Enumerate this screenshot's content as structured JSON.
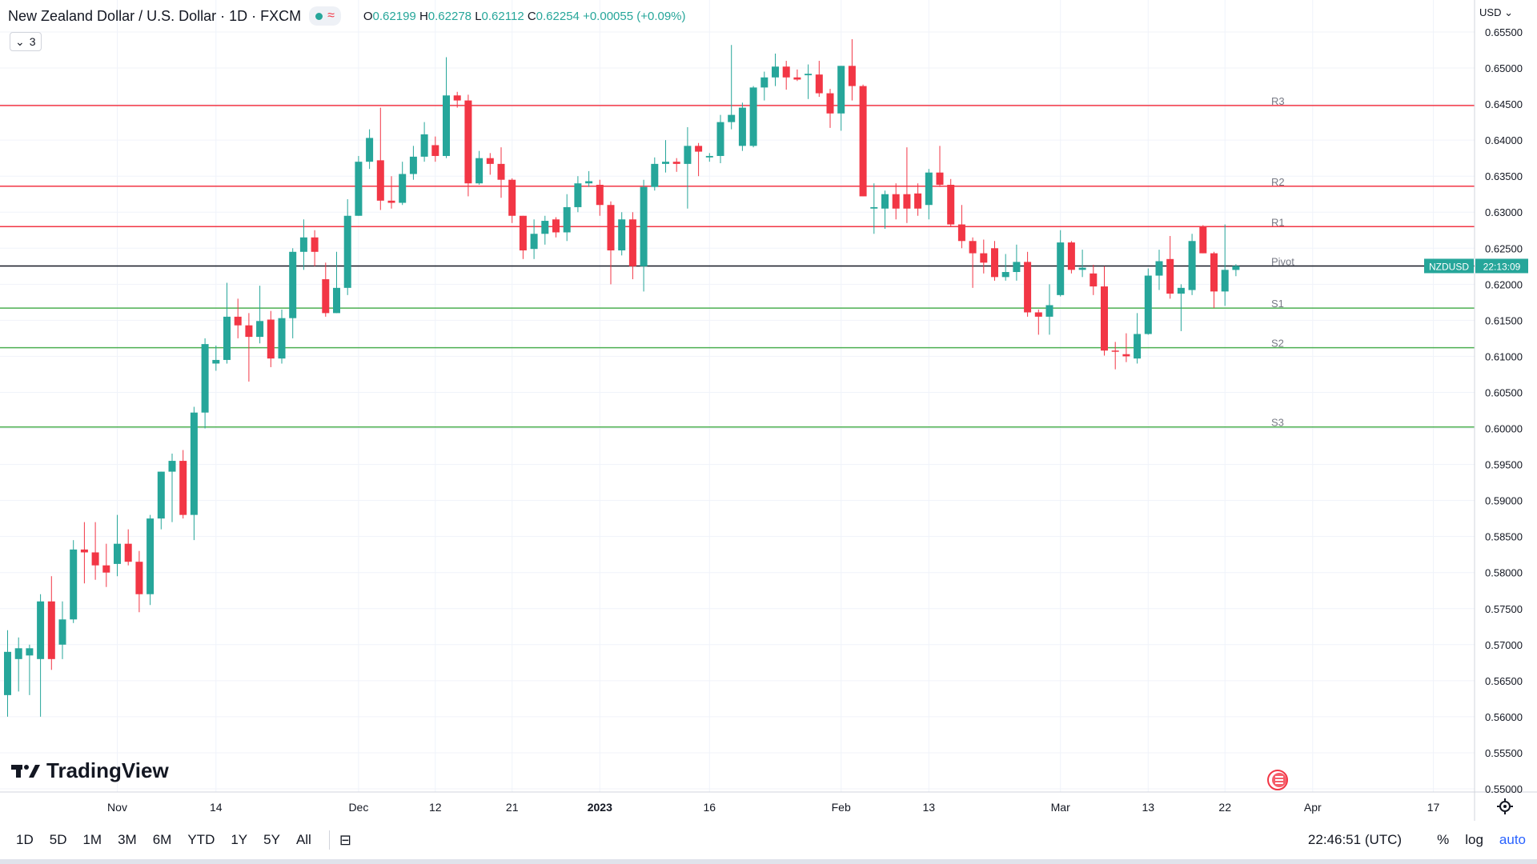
{
  "header": {
    "title": "New Zealand Dollar / U.S. Dollar · 1D · FXCM",
    "ohlc": {
      "o_label": "O",
      "o": "0.62199",
      "h_label": "H",
      "h": "0.62278",
      "l_label": "L",
      "l": "0.62112",
      "c_label": "C",
      "c": "0.62254",
      "change": "+0.00055 (+0.09%)"
    },
    "indicators_count": "3",
    "currency": "USD"
  },
  "logo": {
    "text": "TradingView"
  },
  "colors": {
    "up": "#26a69a",
    "down": "#f23645",
    "resistance": "#f23645",
    "support": "#4caf50",
    "pivot": "#131722",
    "accent": "#2962ff"
  },
  "toolbar": {
    "ranges": [
      "1D",
      "5D",
      "1M",
      "3M",
      "6M",
      "YTD",
      "1Y",
      "5Y",
      "All"
    ],
    "clock": "22:46:51 (UTC)",
    "percent": "%",
    "log": "log",
    "auto": "auto"
  },
  "chart_data": {
    "type": "candlestick",
    "symbol": "NZDUSD",
    "countdown": "22:13:09",
    "last_price": 0.62254,
    "ylim": [
      0.55,
      0.6555
    ],
    "y_ticks": [
      "0.65500",
      "0.65000",
      "0.64500",
      "0.64000",
      "0.63500",
      "0.63000",
      "0.62500",
      "0.62000",
      "0.61500",
      "0.61000",
      "0.60500",
      "0.60000",
      "0.59500",
      "0.59000",
      "0.58500",
      "0.58000",
      "0.57500",
      "0.57000",
      "0.56500",
      "0.56000",
      "0.55500",
      "0.55000"
    ],
    "x_ticks": [
      {
        "label": "Nov",
        "i": 10
      },
      {
        "label": "14",
        "i": 19
      },
      {
        "label": "Dec",
        "i": 32
      },
      {
        "label": "12",
        "i": 39
      },
      {
        "label": "21",
        "i": 46
      },
      {
        "label": "2023",
        "i": 54,
        "bold": true
      },
      {
        "label": "16",
        "i": 64
      },
      {
        "label": "Feb",
        "i": 76
      },
      {
        "label": "13",
        "i": 84
      },
      {
        "label": "Mar",
        "i": 96
      },
      {
        "label": "13",
        "i": 104
      },
      {
        "label": "22",
        "i": 111
      },
      {
        "label": "Apr",
        "i": 119
      },
      {
        "label": "17",
        "i": 130
      }
    ],
    "levels": [
      {
        "name": "R3",
        "value": 0.6448,
        "kind": "resistance"
      },
      {
        "name": "R2",
        "value": 0.6336,
        "kind": "resistance"
      },
      {
        "name": "R1",
        "value": 0.628,
        "kind": "resistance"
      },
      {
        "name": "Pivot",
        "value": 0.62254,
        "kind": "pivot"
      },
      {
        "name": "S1",
        "value": 0.6167,
        "kind": "support"
      },
      {
        "name": "S2",
        "value": 0.6112,
        "kind": "support"
      },
      {
        "name": "S3",
        "value": 0.6002,
        "kind": "support"
      }
    ],
    "candles": [
      {
        "i": 0,
        "o": 0.563,
        "h": 0.572,
        "l": 0.56,
        "c": 0.569
      },
      {
        "i": 1,
        "o": 0.568,
        "h": 0.571,
        "l": 0.5635,
        "c": 0.5695
      },
      {
        "i": 2,
        "o": 0.5685,
        "h": 0.57,
        "l": 0.563,
        "c": 0.5695
      },
      {
        "i": 3,
        "o": 0.568,
        "h": 0.577,
        "l": 0.56,
        "c": 0.576
      },
      {
        "i": 4,
        "o": 0.576,
        "h": 0.5795,
        "l": 0.5665,
        "c": 0.568
      },
      {
        "i": 5,
        "o": 0.57,
        "h": 0.576,
        "l": 0.568,
        "c": 0.5735
      },
      {
        "i": 6,
        "o": 0.5735,
        "h": 0.5845,
        "l": 0.573,
        "c": 0.5832
      },
      {
        "i": 7,
        "o": 0.5832,
        "h": 0.587,
        "l": 0.5785,
        "c": 0.5828
      },
      {
        "i": 8,
        "o": 0.5828,
        "h": 0.587,
        "l": 0.579,
        "c": 0.581
      },
      {
        "i": 9,
        "o": 0.581,
        "h": 0.584,
        "l": 0.578,
        "c": 0.58
      },
      {
        "i": 10,
        "o": 0.5812,
        "h": 0.588,
        "l": 0.5795,
        "c": 0.584
      },
      {
        "i": 11,
        "o": 0.584,
        "h": 0.586,
        "l": 0.581,
        "c": 0.5815
      },
      {
        "i": 12,
        "o": 0.5815,
        "h": 0.583,
        "l": 0.5745,
        "c": 0.577
      },
      {
        "i": 13,
        "o": 0.577,
        "h": 0.588,
        "l": 0.5755,
        "c": 0.5875
      },
      {
        "i": 14,
        "o": 0.5875,
        "h": 0.594,
        "l": 0.586,
        "c": 0.594
      },
      {
        "i": 15,
        "o": 0.594,
        "h": 0.5965,
        "l": 0.587,
        "c": 0.5955
      },
      {
        "i": 16,
        "o": 0.5955,
        "h": 0.597,
        "l": 0.5875,
        "c": 0.588
      },
      {
        "i": 17,
        "o": 0.588,
        "h": 0.603,
        "l": 0.5845,
        "c": 0.6022
      },
      {
        "i": 18,
        "o": 0.6022,
        "h": 0.6125,
        "l": 0.6,
        "c": 0.6117
      },
      {
        "i": 19,
        "o": 0.609,
        "h": 0.6115,
        "l": 0.608,
        "c": 0.6095
      },
      {
        "i": 20,
        "o": 0.6095,
        "h": 0.6202,
        "l": 0.609,
        "c": 0.6155
      },
      {
        "i": 21,
        "o": 0.6155,
        "h": 0.618,
        "l": 0.6125,
        "c": 0.6143
      },
      {
        "i": 22,
        "o": 0.6143,
        "h": 0.616,
        "l": 0.6065,
        "c": 0.6127
      },
      {
        "i": 23,
        "o": 0.6127,
        "h": 0.6198,
        "l": 0.6118,
        "c": 0.6149
      },
      {
        "i": 24,
        "o": 0.6151,
        "h": 0.6163,
        "l": 0.6085,
        "c": 0.6097
      },
      {
        "i": 25,
        "o": 0.6097,
        "h": 0.6165,
        "l": 0.609,
        "c": 0.6153
      },
      {
        "i": 26,
        "o": 0.6153,
        "h": 0.625,
        "l": 0.6125,
        "c": 0.6245
      },
      {
        "i": 27,
        "o": 0.6245,
        "h": 0.629,
        "l": 0.622,
        "c": 0.6265
      },
      {
        "i": 28,
        "o": 0.6265,
        "h": 0.6275,
        "l": 0.6225,
        "c": 0.6245
      },
      {
        "i": 29,
        "o": 0.6207,
        "h": 0.623,
        "l": 0.6155,
        "c": 0.616
      },
      {
        "i": 30,
        "o": 0.616,
        "h": 0.6245,
        "l": 0.616,
        "c": 0.6195
      },
      {
        "i": 31,
        "o": 0.6195,
        "h": 0.6318,
        "l": 0.6185,
        "c": 0.6295
      },
      {
        "i": 32,
        "o": 0.6295,
        "h": 0.6378,
        "l": 0.6295,
        "c": 0.637
      },
      {
        "i": 33,
        "o": 0.637,
        "h": 0.6415,
        "l": 0.636,
        "c": 0.6403
      },
      {
        "i": 34,
        "o": 0.6372,
        "h": 0.6445,
        "l": 0.6303,
        "c": 0.6316
      },
      {
        "i": 35,
        "o": 0.6316,
        "h": 0.635,
        "l": 0.6305,
        "c": 0.6313
      },
      {
        "i": 36,
        "o": 0.6313,
        "h": 0.637,
        "l": 0.631,
        "c": 0.6353
      },
      {
        "i": 37,
        "o": 0.6353,
        "h": 0.6392,
        "l": 0.6345,
        "c": 0.6377
      },
      {
        "i": 38,
        "o": 0.6377,
        "h": 0.6425,
        "l": 0.637,
        "c": 0.6408
      },
      {
        "i": 39,
        "o": 0.6393,
        "h": 0.6405,
        "l": 0.637,
        "c": 0.6378
      },
      {
        "i": 40,
        "o": 0.6378,
        "h": 0.6515,
        "l": 0.6375,
        "c": 0.6462
      },
      {
        "i": 41,
        "o": 0.6462,
        "h": 0.6467,
        "l": 0.6445,
        "c": 0.6455
      },
      {
        "i": 42,
        "o": 0.6455,
        "h": 0.6463,
        "l": 0.6322,
        "c": 0.634
      },
      {
        "i": 43,
        "o": 0.634,
        "h": 0.6385,
        "l": 0.6338,
        "c": 0.6375
      },
      {
        "i": 44,
        "o": 0.6375,
        "h": 0.6382,
        "l": 0.6352,
        "c": 0.6367
      },
      {
        "i": 45,
        "o": 0.6367,
        "h": 0.639,
        "l": 0.632,
        "c": 0.6345
      },
      {
        "i": 46,
        "o": 0.6345,
        "h": 0.6347,
        "l": 0.6285,
        "c": 0.6295
      },
      {
        "i": 47,
        "o": 0.6295,
        "h": 0.6295,
        "l": 0.6235,
        "c": 0.6247
      },
      {
        "i": 48,
        "o": 0.6249,
        "h": 0.629,
        "l": 0.6235,
        "c": 0.627
      },
      {
        "i": 49,
        "o": 0.627,
        "h": 0.6295,
        "l": 0.6255,
        "c": 0.6288
      },
      {
        "i": 50,
        "o": 0.629,
        "h": 0.6293,
        "l": 0.6265,
        "c": 0.6272
      },
      {
        "i": 51,
        "o": 0.6272,
        "h": 0.6325,
        "l": 0.626,
        "c": 0.6307
      },
      {
        "i": 52,
        "o": 0.6307,
        "h": 0.635,
        "l": 0.63,
        "c": 0.634
      },
      {
        "i": 53,
        "o": 0.634,
        "h": 0.6357,
        "l": 0.6335,
        "c": 0.6343
      },
      {
        "i": 54,
        "o": 0.6338,
        "h": 0.6345,
        "l": 0.6295,
        "c": 0.631
      },
      {
        "i": 55,
        "o": 0.631,
        "h": 0.6315,
        "l": 0.62,
        "c": 0.6247
      },
      {
        "i": 56,
        "o": 0.6247,
        "h": 0.63,
        "l": 0.624,
        "c": 0.629
      },
      {
        "i": 57,
        "o": 0.629,
        "h": 0.63,
        "l": 0.6207,
        "c": 0.6225
      },
      {
        "i": 58,
        "o": 0.6225,
        "h": 0.6345,
        "l": 0.619,
        "c": 0.6335
      },
      {
        "i": 59,
        "o": 0.6335,
        "h": 0.6376,
        "l": 0.633,
        "c": 0.6367
      },
      {
        "i": 60,
        "o": 0.6367,
        "h": 0.64,
        "l": 0.6355,
        "c": 0.637
      },
      {
        "i": 61,
        "o": 0.637,
        "h": 0.6375,
        "l": 0.6356,
        "c": 0.6367
      },
      {
        "i": 62,
        "o": 0.6367,
        "h": 0.6418,
        "l": 0.6305,
        "c": 0.6392
      },
      {
        "i": 63,
        "o": 0.6392,
        "h": 0.6396,
        "l": 0.635,
        "c": 0.6384
      },
      {
        "i": 64,
        "o": 0.6376,
        "h": 0.6382,
        "l": 0.637,
        "c": 0.6378
      },
      {
        "i": 65,
        "o": 0.6378,
        "h": 0.6435,
        "l": 0.6368,
        "c": 0.6425
      },
      {
        "i": 66,
        "o": 0.6425,
        "h": 0.6532,
        "l": 0.6415,
        "c": 0.6435
      },
      {
        "i": 67,
        "o": 0.6392,
        "h": 0.6452,
        "l": 0.6385,
        "c": 0.6445
      },
      {
        "i": 68,
        "o": 0.6392,
        "h": 0.6475,
        "l": 0.639,
        "c": 0.6473
      },
      {
        "i": 69,
        "o": 0.6473,
        "h": 0.6495,
        "l": 0.6455,
        "c": 0.6487
      },
      {
        "i": 70,
        "o": 0.6487,
        "h": 0.652,
        "l": 0.6475,
        "c": 0.6502
      },
      {
        "i": 71,
        "o": 0.6502,
        "h": 0.651,
        "l": 0.647,
        "c": 0.6487
      },
      {
        "i": 72,
        "o": 0.6487,
        "h": 0.6498,
        "l": 0.6482,
        "c": 0.6484
      },
      {
        "i": 73,
        "o": 0.649,
        "h": 0.6505,
        "l": 0.6457,
        "c": 0.6492
      },
      {
        "i": 74,
        "o": 0.6491,
        "h": 0.651,
        "l": 0.646,
        "c": 0.6465
      },
      {
        "i": 75,
        "o": 0.6465,
        "h": 0.6471,
        "l": 0.6417,
        "c": 0.6437
      },
      {
        "i": 76,
        "o": 0.6437,
        "h": 0.6503,
        "l": 0.6413,
        "c": 0.6503
      },
      {
        "i": 77,
        "o": 0.6503,
        "h": 0.654,
        "l": 0.6455,
        "c": 0.6475
      },
      {
        "i": 78,
        "o": 0.6475,
        "h": 0.6477,
        "l": 0.6322,
        "c": 0.6322
      },
      {
        "i": 79,
        "o": 0.6305,
        "h": 0.634,
        "l": 0.627,
        "c": 0.6307
      },
      {
        "i": 80,
        "o": 0.6305,
        "h": 0.633,
        "l": 0.6277,
        "c": 0.6325
      },
      {
        "i": 81,
        "o": 0.6325,
        "h": 0.634,
        "l": 0.629,
        "c": 0.6305
      },
      {
        "i": 82,
        "o": 0.6325,
        "h": 0.639,
        "l": 0.6285,
        "c": 0.6305
      },
      {
        "i": 83,
        "o": 0.6326,
        "h": 0.634,
        "l": 0.6295,
        "c": 0.6305
      },
      {
        "i": 84,
        "o": 0.631,
        "h": 0.636,
        "l": 0.629,
        "c": 0.6355
      },
      {
        "i": 85,
        "o": 0.6355,
        "h": 0.6392,
        "l": 0.6335,
        "c": 0.6338
      },
      {
        "i": 86,
        "o": 0.6338,
        "h": 0.6346,
        "l": 0.628,
        "c": 0.6283
      },
      {
        "i": 87,
        "o": 0.6283,
        "h": 0.631,
        "l": 0.625,
        "c": 0.626
      },
      {
        "i": 88,
        "o": 0.626,
        "h": 0.6265,
        "l": 0.6195,
        "c": 0.6243
      },
      {
        "i": 89,
        "o": 0.6243,
        "h": 0.6262,
        "l": 0.6215,
        "c": 0.623
      },
      {
        "i": 90,
        "o": 0.625,
        "h": 0.626,
        "l": 0.6205,
        "c": 0.621
      },
      {
        "i": 91,
        "o": 0.621,
        "h": 0.6242,
        "l": 0.6205,
        "c": 0.6217
      },
      {
        "i": 92,
        "o": 0.6217,
        "h": 0.6255,
        "l": 0.6205,
        "c": 0.6231
      },
      {
        "i": 93,
        "o": 0.6231,
        "h": 0.6245,
        "l": 0.6155,
        "c": 0.6161
      },
      {
        "i": 94,
        "o": 0.6161,
        "h": 0.6165,
        "l": 0.613,
        "c": 0.6155
      },
      {
        "i": 95,
        "o": 0.6155,
        "h": 0.62,
        "l": 0.613,
        "c": 0.6171
      },
      {
        "i": 96,
        "o": 0.6185,
        "h": 0.6275,
        "l": 0.6183,
        "c": 0.6258
      },
      {
        "i": 97,
        "o": 0.6258,
        "h": 0.626,
        "l": 0.6215,
        "c": 0.622
      },
      {
        "i": 98,
        "o": 0.622,
        "h": 0.6248,
        "l": 0.621,
        "c": 0.6223
      },
      {
        "i": 99,
        "o": 0.6215,
        "h": 0.6227,
        "l": 0.6185,
        "c": 0.6197
      },
      {
        "i": 100,
        "o": 0.6197,
        "h": 0.6225,
        "l": 0.6101,
        "c": 0.6108
      },
      {
        "i": 101,
        "o": 0.6108,
        "h": 0.612,
        "l": 0.6082,
        "c": 0.6107
      },
      {
        "i": 102,
        "o": 0.6103,
        "h": 0.6132,
        "l": 0.6092,
        "c": 0.61
      },
      {
        "i": 103,
        "o": 0.6097,
        "h": 0.616,
        "l": 0.609,
        "c": 0.6131
      },
      {
        "i": 104,
        "o": 0.6131,
        "h": 0.6222,
        "l": 0.613,
        "c": 0.6212
      },
      {
        "i": 105,
        "o": 0.6212,
        "h": 0.6248,
        "l": 0.6192,
        "c": 0.6232
      },
      {
        "i": 106,
        "o": 0.6235,
        "h": 0.6267,
        "l": 0.618,
        "c": 0.6187
      },
      {
        "i": 107,
        "o": 0.6187,
        "h": 0.62,
        "l": 0.6135,
        "c": 0.6195
      },
      {
        "i": 108,
        "o": 0.6192,
        "h": 0.627,
        "l": 0.6185,
        "c": 0.626
      },
      {
        "i": 109,
        "o": 0.628,
        "h": 0.6282,
        "l": 0.6243,
        "c": 0.6243
      },
      {
        "i": 110,
        "o": 0.6243,
        "h": 0.6245,
        "l": 0.6167,
        "c": 0.619
      },
      {
        "i": 111,
        "o": 0.619,
        "h": 0.6283,
        "l": 0.617,
        "c": 0.622
      },
      {
        "i": 112,
        "o": 0.62199,
        "h": 0.62278,
        "l": 0.62112,
        "c": 0.62254
      }
    ]
  }
}
